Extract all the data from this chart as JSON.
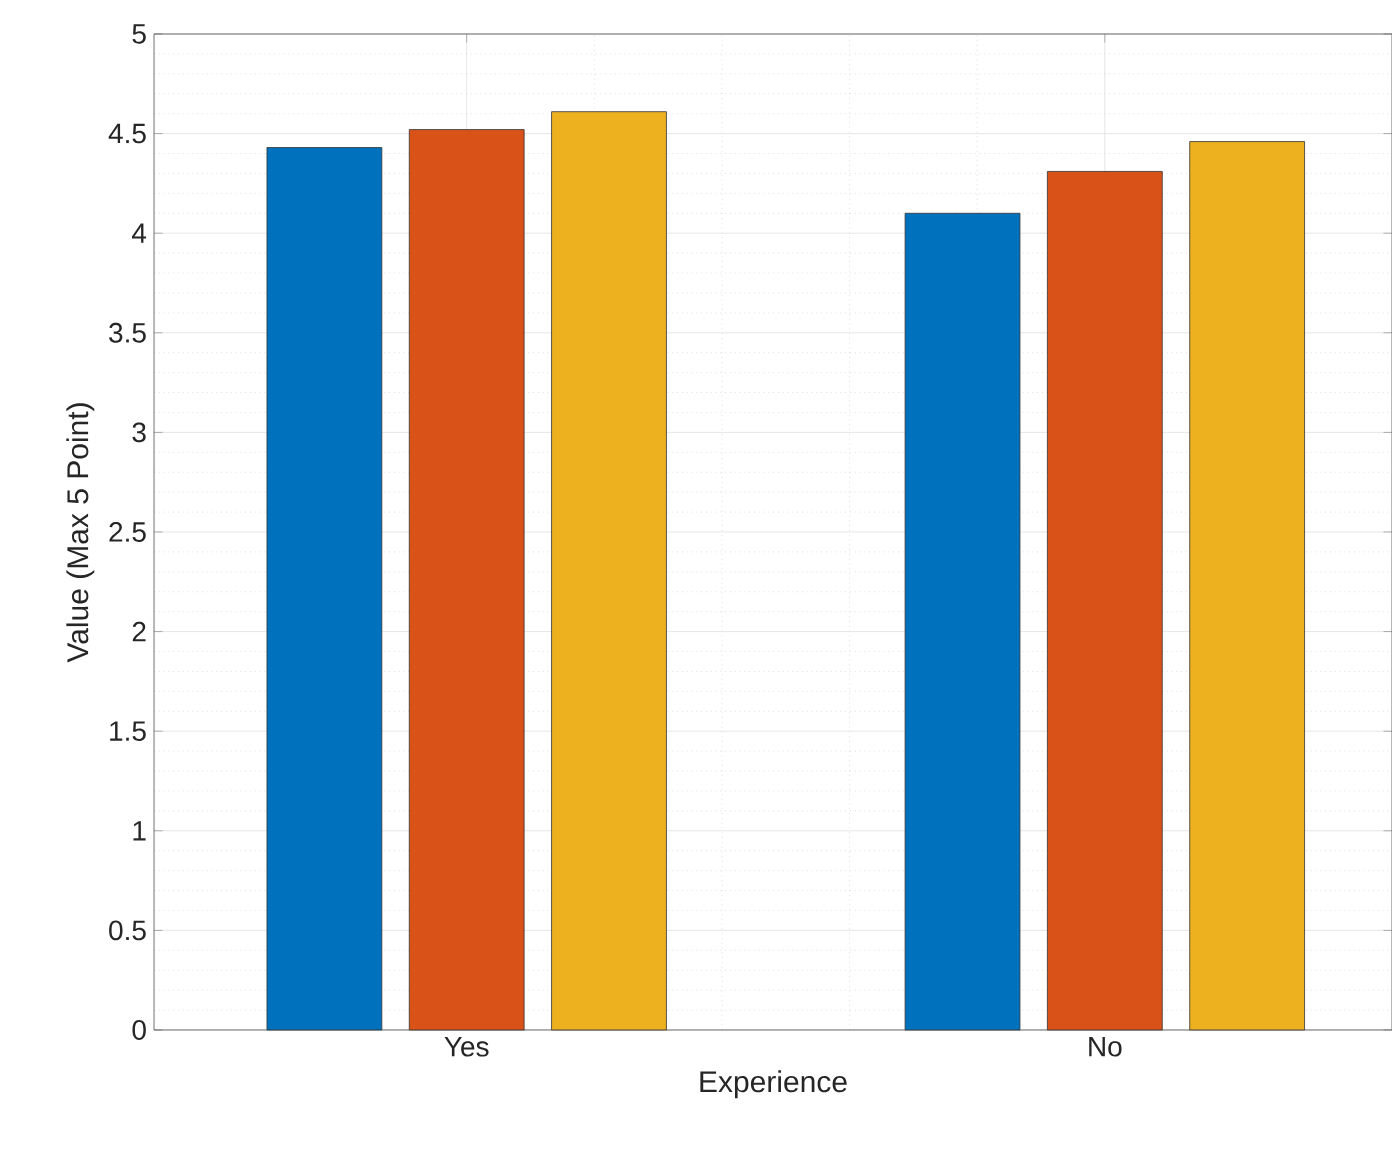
{
  "chart_data": {
    "type": "bar",
    "xlabel": "Experience",
    "ylabel": "Value (Max 5 Point)",
    "categories": [
      "Yes",
      "No"
    ],
    "series": [
      {
        "color": "#0072bd",
        "values": [
          4.43,
          4.1
        ]
      },
      {
        "color": "#d95319",
        "values": [
          4.52,
          4.31
        ]
      },
      {
        "color": "#edb120",
        "values": [
          4.61,
          4.46
        ]
      }
    ],
    "ylim": [
      0,
      5
    ],
    "yticks": [
      0,
      0.5,
      1,
      1.5,
      2,
      2.5,
      3,
      3.5,
      4,
      4.5,
      5
    ],
    "grid": true
  }
}
